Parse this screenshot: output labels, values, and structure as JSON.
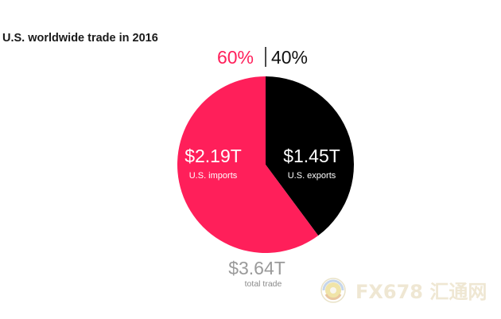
{
  "chart_data": {
    "type": "pie",
    "title": "U.S. worldwide trade in 2016",
    "slices": [
      {
        "label": "U.S. imports",
        "value_label": "$2.19T",
        "value": 2.19,
        "percent_label": "60%",
        "color": "#ff1f5a"
      },
      {
        "label": "U.S. exports",
        "value_label": "$1.45T",
        "value": 1.45,
        "percent_label": "40%",
        "color": "#000000"
      }
    ],
    "total": {
      "value_label": "$3.64T",
      "value": 3.64,
      "label": "total trade"
    }
  },
  "colors": {
    "title": "#1a1a1a",
    "total_value": "#9a9a9a",
    "total_label": "#8a8a8a"
  },
  "watermark": {
    "text": "FX678 汇通网"
  }
}
